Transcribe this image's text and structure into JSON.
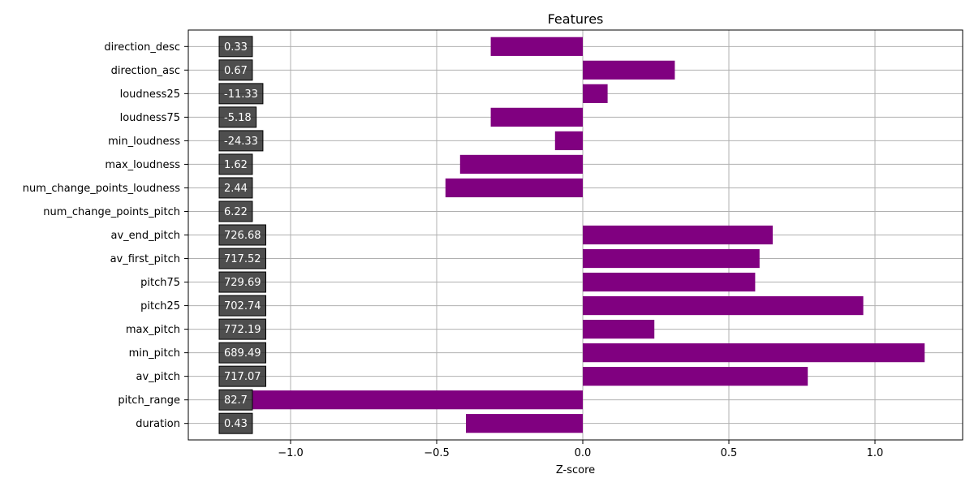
{
  "chart_data": {
    "type": "bar",
    "orientation": "horizontal",
    "title": "Features",
    "xlabel": "Z-score",
    "ylabel": "",
    "xlim": [
      -1.35,
      1.3
    ],
    "xticks": [
      -1.0,
      -0.5,
      0.0,
      0.5,
      1.0
    ],
    "xtick_labels": [
      "−1.0",
      "−0.5",
      "0.0",
      "0.5",
      "1.0"
    ],
    "grid": true,
    "bar_color": "#800080",
    "value_box_color": "#222222",
    "categories": [
      "duration",
      "pitch_range",
      "av_pitch",
      "min_pitch",
      "max_pitch",
      "pitch25",
      "pitch75",
      "av_first_pitch",
      "av_end_pitch",
      "num_change_points_pitch",
      "num_change_points_loudness",
      "max_loudness",
      "min_loudness",
      "loudness75",
      "loudness25",
      "direction_asc",
      "direction_desc"
    ],
    "values": [
      -0.4,
      -1.13,
      0.77,
      1.17,
      0.245,
      0.96,
      0.59,
      0.605,
      0.65,
      0.0,
      -0.47,
      -0.42,
      -0.095,
      -0.315,
      0.085,
      0.315,
      -0.315
    ],
    "value_labels": [
      "0.43",
      "82.7",
      "717.07",
      "689.49",
      "772.19",
      "702.74",
      "729.69",
      "717.52",
      "726.68",
      "6.22",
      "2.44",
      "1.62",
      "-24.33",
      "-5.18",
      "-11.33",
      "0.67",
      "0.33"
    ]
  }
}
